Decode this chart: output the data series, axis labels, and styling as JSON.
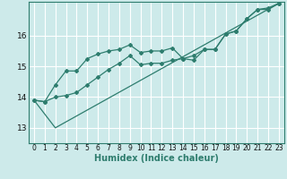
{
  "xlabel": "Humidex (Indice chaleur)",
  "background_color": "#cdeaea",
  "grid_color": "#ffffff",
  "line_color": "#2e7d6e",
  "xlim": [
    -0.5,
    23.5
  ],
  "ylim": [
    12.5,
    17.1
  ],
  "yticks": [
    13,
    14,
    15,
    16
  ],
  "xticks": [
    0,
    1,
    2,
    3,
    4,
    5,
    6,
    7,
    8,
    9,
    10,
    11,
    12,
    13,
    14,
    15,
    16,
    17,
    18,
    19,
    20,
    21,
    22,
    23
  ],
  "series1_x": [
    0,
    1,
    2,
    3,
    4,
    5,
    6,
    7,
    8,
    9,
    10,
    11,
    12,
    13,
    14,
    15,
    16,
    17,
    18,
    19,
    20,
    21,
    22,
    23
  ],
  "series1_y": [
    13.9,
    13.85,
    14.4,
    14.85,
    14.85,
    15.25,
    15.4,
    15.5,
    15.55,
    15.7,
    15.45,
    15.5,
    15.5,
    15.6,
    15.25,
    15.2,
    15.55,
    15.55,
    16.05,
    16.15,
    16.55,
    16.85,
    16.9,
    17.05
  ],
  "series2_x": [
    0,
    1,
    2,
    3,
    4,
    5,
    6,
    7,
    8,
    9,
    10,
    11,
    12,
    13,
    14,
    15,
    16,
    17,
    18,
    19,
    20,
    21,
    22,
    23
  ],
  "series2_y": [
    13.9,
    13.85,
    14.0,
    14.05,
    14.15,
    14.4,
    14.65,
    14.9,
    15.1,
    15.35,
    15.05,
    15.1,
    15.1,
    15.2,
    15.25,
    15.35,
    15.55,
    15.55,
    16.05,
    16.15,
    16.55,
    16.85,
    16.85,
    17.05
  ],
  "series3_x": [
    0,
    2,
    23
  ],
  "series3_y": [
    13.9,
    13.0,
    17.05
  ],
  "xlabel_fontsize": 7,
  "tick_fontsize": 6.5,
  "xlabel_fontweight": "bold"
}
